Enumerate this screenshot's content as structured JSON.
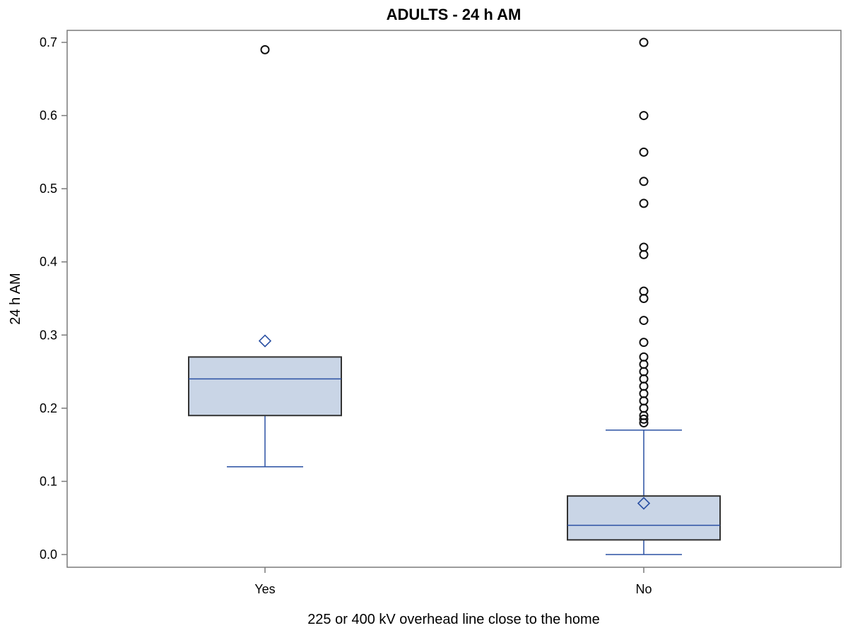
{
  "chart_data": {
    "type": "boxplot",
    "title": "ADULTS - 24 h AM",
    "xlabel": "225 or 400 kV overhead line close to the home",
    "ylabel": "24 h AM",
    "ylim": [
      0,
      0.72
    ],
    "yticks": [
      {
        "value": 0.0,
        "label": "0.0"
      },
      {
        "value": 0.1,
        "label": "0.1"
      },
      {
        "value": 0.2,
        "label": "0.2"
      },
      {
        "value": 0.3,
        "label": "0.3"
      },
      {
        "value": 0.4,
        "label": "0.4"
      },
      {
        "value": 0.5,
        "label": "0.5"
      },
      {
        "value": 0.6,
        "label": "0.6"
      },
      {
        "value": 0.7,
        "label": "0.7"
      }
    ],
    "grid": false,
    "categories": [
      "Yes",
      "No"
    ],
    "boxes": [
      {
        "category": "Yes",
        "whisker_low": 0.12,
        "q1": 0.19,
        "median": 0.24,
        "q3": 0.27,
        "whisker_high": 0.27,
        "mean": 0.292,
        "outliers": [
          0.69
        ]
      },
      {
        "category": "No",
        "whisker_low": 0.0,
        "q1": 0.02,
        "median": 0.04,
        "q3": 0.08,
        "whisker_high": 0.17,
        "mean": 0.07,
        "outliers": [
          0.18,
          0.185,
          0.19,
          0.2,
          0.21,
          0.22,
          0.23,
          0.24,
          0.25,
          0.26,
          0.27,
          0.29,
          0.32,
          0.35,
          0.36,
          0.41,
          0.42,
          0.48,
          0.51,
          0.55,
          0.6,
          0.7
        ]
      }
    ],
    "colors": {
      "box_fill": "#c9d5e6",
      "box_stroke": "#333333",
      "line": "#2a50a3",
      "outlier": "#111111",
      "frame": "#7a7a7a"
    }
  }
}
